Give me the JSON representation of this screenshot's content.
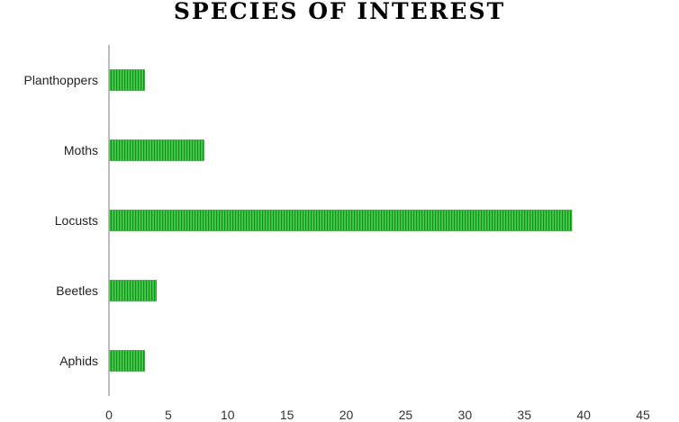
{
  "chart_data": {
    "type": "bar",
    "orientation": "horizontal",
    "title": "SPECIES OF INTEREST",
    "categories": [
      "Planthoppers",
      "Moths",
      "Locusts",
      "Beetles",
      "Aphids"
    ],
    "values": [
      3,
      8,
      39,
      4,
      3
    ],
    "xlim": [
      0,
      45
    ],
    "xticks": [
      "0",
      "5",
      "10",
      "15",
      "20",
      "25",
      "30",
      "35",
      "40",
      "45"
    ],
    "xlabel": "",
    "ylabel": "",
    "grid": false,
    "legend": "none",
    "bar_color": "#3fcf46",
    "bar_stripe_color": "#1f8a24",
    "axis_color": "#a6a6a6"
  }
}
